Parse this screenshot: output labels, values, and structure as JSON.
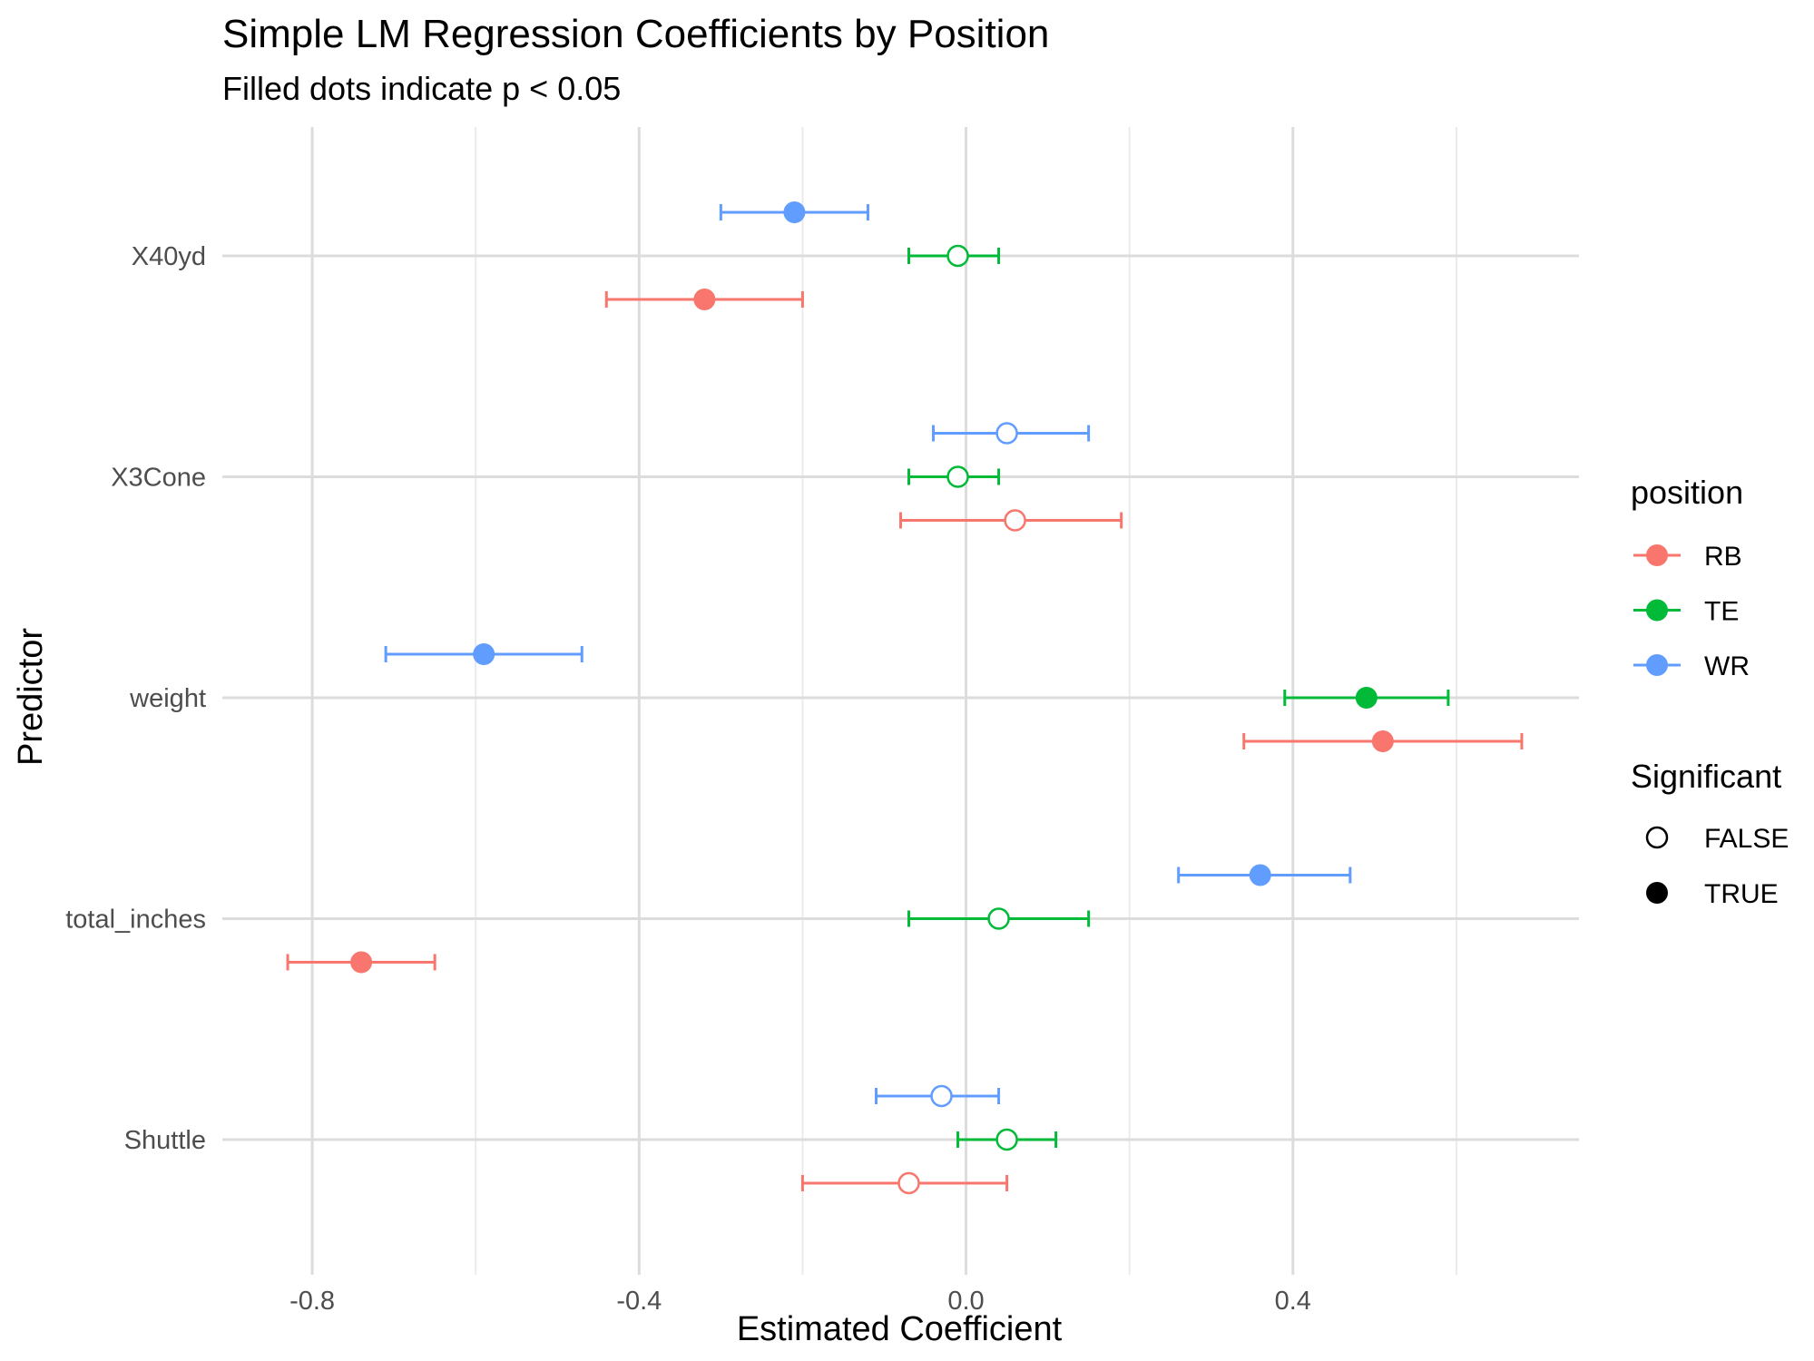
{
  "chart_data": {
    "type": "scatter",
    "title": "Simple LM Regression Coefficients by Position",
    "subtitle": "Filled dots indicate p < 0.05",
    "xlabel": "Estimated Coefficient",
    "ylabel": "Predictor",
    "xlim": [
      -0.91,
      0.75
    ],
    "x_ticks": [
      "-0.8",
      "-0.4",
      "0.0",
      "0.4"
    ],
    "categories": [
      "X40yd",
      "X3Cone",
      "weight",
      "total_inches",
      "Shuttle"
    ],
    "grid": true,
    "legend_placement": "right",
    "legend": {
      "position_title": "position",
      "significance_title": "Significant",
      "significance_labels": [
        "FALSE",
        "TRUE"
      ]
    },
    "series": [
      {
        "name": "RB",
        "color": "#F8766D",
        "points": [
          {
            "predictor": "X40yd",
            "estimate": -0.32,
            "lower": -0.44,
            "upper": -0.2,
            "significant": true
          },
          {
            "predictor": "X3Cone",
            "estimate": 0.06,
            "lower": -0.08,
            "upper": 0.19,
            "significant": false
          },
          {
            "predictor": "weight",
            "estimate": 0.51,
            "lower": 0.34,
            "upper": 0.68,
            "significant": true
          },
          {
            "predictor": "total_inches",
            "estimate": -0.74,
            "lower": -0.83,
            "upper": -0.65,
            "significant": true
          },
          {
            "predictor": "Shuttle",
            "estimate": -0.07,
            "lower": -0.2,
            "upper": 0.05,
            "significant": false
          }
        ]
      },
      {
        "name": "TE",
        "color": "#00BA38",
        "points": [
          {
            "predictor": "X40yd",
            "estimate": -0.01,
            "lower": -0.07,
            "upper": 0.04,
            "significant": false
          },
          {
            "predictor": "X3Cone",
            "estimate": -0.01,
            "lower": -0.07,
            "upper": 0.04,
            "significant": false
          },
          {
            "predictor": "weight",
            "estimate": 0.49,
            "lower": 0.39,
            "upper": 0.59,
            "significant": true
          },
          {
            "predictor": "total_inches",
            "estimate": 0.04,
            "lower": -0.07,
            "upper": 0.15,
            "significant": false
          },
          {
            "predictor": "Shuttle",
            "estimate": 0.05,
            "lower": -0.01,
            "upper": 0.11,
            "significant": false
          }
        ]
      },
      {
        "name": "WR",
        "color": "#619CFF",
        "points": [
          {
            "predictor": "X40yd",
            "estimate": -0.21,
            "lower": -0.3,
            "upper": -0.12,
            "significant": true
          },
          {
            "predictor": "X3Cone",
            "estimate": 0.05,
            "lower": -0.04,
            "upper": 0.15,
            "significant": false
          },
          {
            "predictor": "weight",
            "estimate": -0.59,
            "lower": -0.71,
            "upper": -0.47,
            "significant": true
          },
          {
            "predictor": "total_inches",
            "estimate": 0.36,
            "lower": 0.26,
            "upper": 0.47,
            "significant": true
          },
          {
            "predictor": "Shuttle",
            "estimate": -0.03,
            "lower": -0.11,
            "upper": 0.04,
            "significant": false
          }
        ]
      }
    ]
  }
}
